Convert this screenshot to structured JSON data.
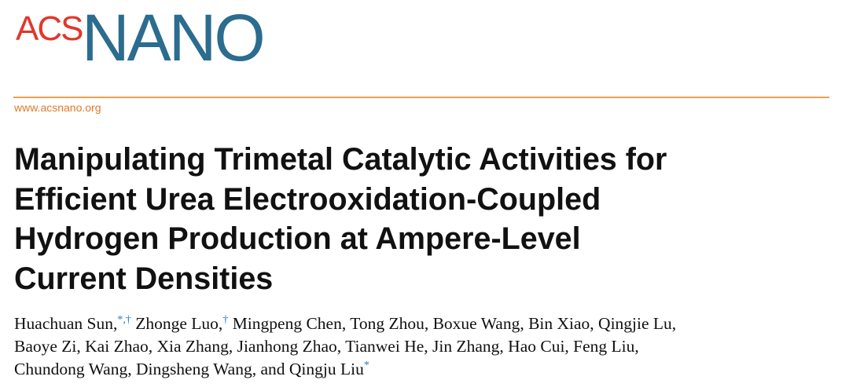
{
  "header": {
    "logo": {
      "left": "ACS",
      "right": "NANO"
    },
    "url": "www.acsnano.org"
  },
  "title": {
    "lines": [
      "Manipulating Trimetal Catalytic Activities for",
      "Efficient Urea Electrooxidation-Coupled",
      "Hydrogen Production at Ampere-Level",
      "Current Densities"
    ]
  },
  "authors": {
    "lines": [
      [
        {
          "text": "Huachuan Sun,",
          "sup": "*,†"
        },
        {
          "text": " Zhonge Luo,",
          "sup": "†"
        },
        {
          "text": " Mingpeng Chen, Tong Zhou, Boxue Wang, Bin Xiao, Qingjie Lu,"
        }
      ],
      [
        {
          "text": "Baoye Zi, Kai Zhao, Xia Zhang, Jianhong Zhao, Tianwei He, Jin Zhang, Hao Cui, Feng Liu,"
        }
      ],
      [
        {
          "text": "Chundong Wang, Dingsheng Wang, and Qingju Liu",
          "sup": "*"
        }
      ]
    ]
  }
}
